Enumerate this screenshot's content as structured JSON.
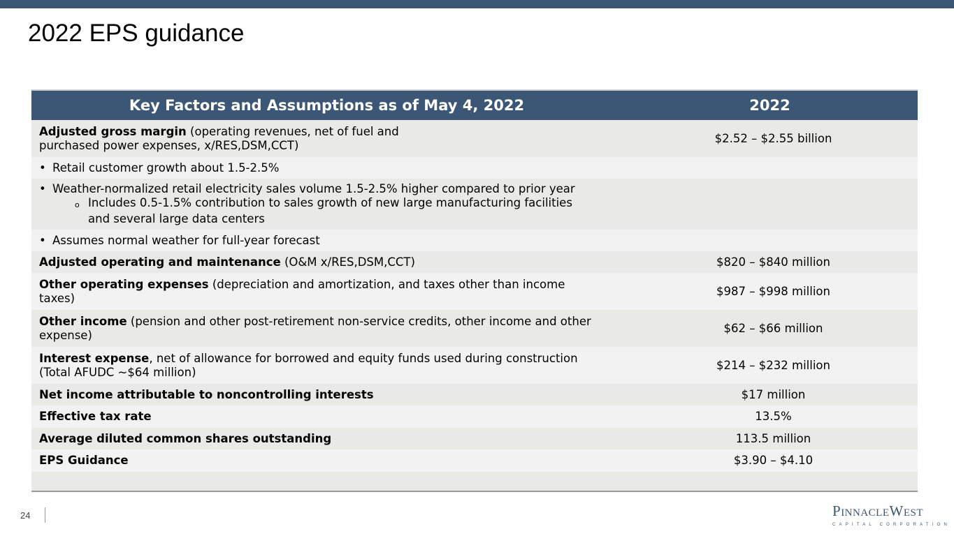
{
  "title": "2022 EPS guidance",
  "table": {
    "header": {
      "factors": "Key Factors and Assumptions as of May 4, 2022",
      "year": "2022"
    },
    "rows": [
      {
        "bold": "Adjusted gross margin",
        "text_line1": " (operating revenues, net of fuel and",
        "text_line2": "purchased power expenses, x/RES,DSM,CCT)",
        "value": "$2.52 – $2.55 billion"
      },
      {
        "bullet": "•",
        "text": "Retail customer growth about 1.5-2.5%"
      },
      {
        "bullet": "•",
        "text": "Weather-normalized retail electricity sales volume 1.5-2.5% higher compared to prior year",
        "sub_mark": "o",
        "sub_line1": "Includes 0.5-1.5% contribution to sales growth of new large manufacturing facilities",
        "sub_line2": "and several large data centers"
      },
      {
        "bullet": "•",
        "text": "Assumes normal weather for full-year forecast"
      },
      {
        "bold": "Adjusted operating and maintenance",
        "text": " (O&M x/RES,DSM,CCT)",
        "value": "$820 – $840 million"
      },
      {
        "bold": "Other operating expenses",
        "text_line1": " (depreciation and amortization, and taxes other than income",
        "text_line2": "taxes)",
        "value": "$987 – $998 million"
      },
      {
        "bold": "Other income",
        "text_line1": " (pension and other post-retirement non-service credits, other income and other",
        "text_line2": "expense)",
        "value": "$62 – $66 million"
      },
      {
        "bold": "Interest expense",
        "text_line1": ", net of allowance for borrowed and equity funds used during construction",
        "text_line2": "(Total AFUDC ~$64 million)",
        "value": "$214 – $232 million"
      },
      {
        "bold": "Net income attributable to noncontrolling interests",
        "value": "$17 million"
      },
      {
        "bold": "Effective tax rate",
        "value": "13.5%"
      },
      {
        "bold": "Average diluted common shares outstanding",
        "value": "113.5 million"
      },
      {
        "bold": "EPS Guidance",
        "value": "$3.90 – $4.10"
      }
    ]
  },
  "footer": {
    "page_number": "24",
    "logo_line1": "PINNACLE WEST",
    "logo_line2": "CAPITAL CORPORATION"
  },
  "colors": {
    "header_bg": "#3c5675",
    "row_shade": "#e9e9e5",
    "row_light": "#f2f2f2"
  }
}
